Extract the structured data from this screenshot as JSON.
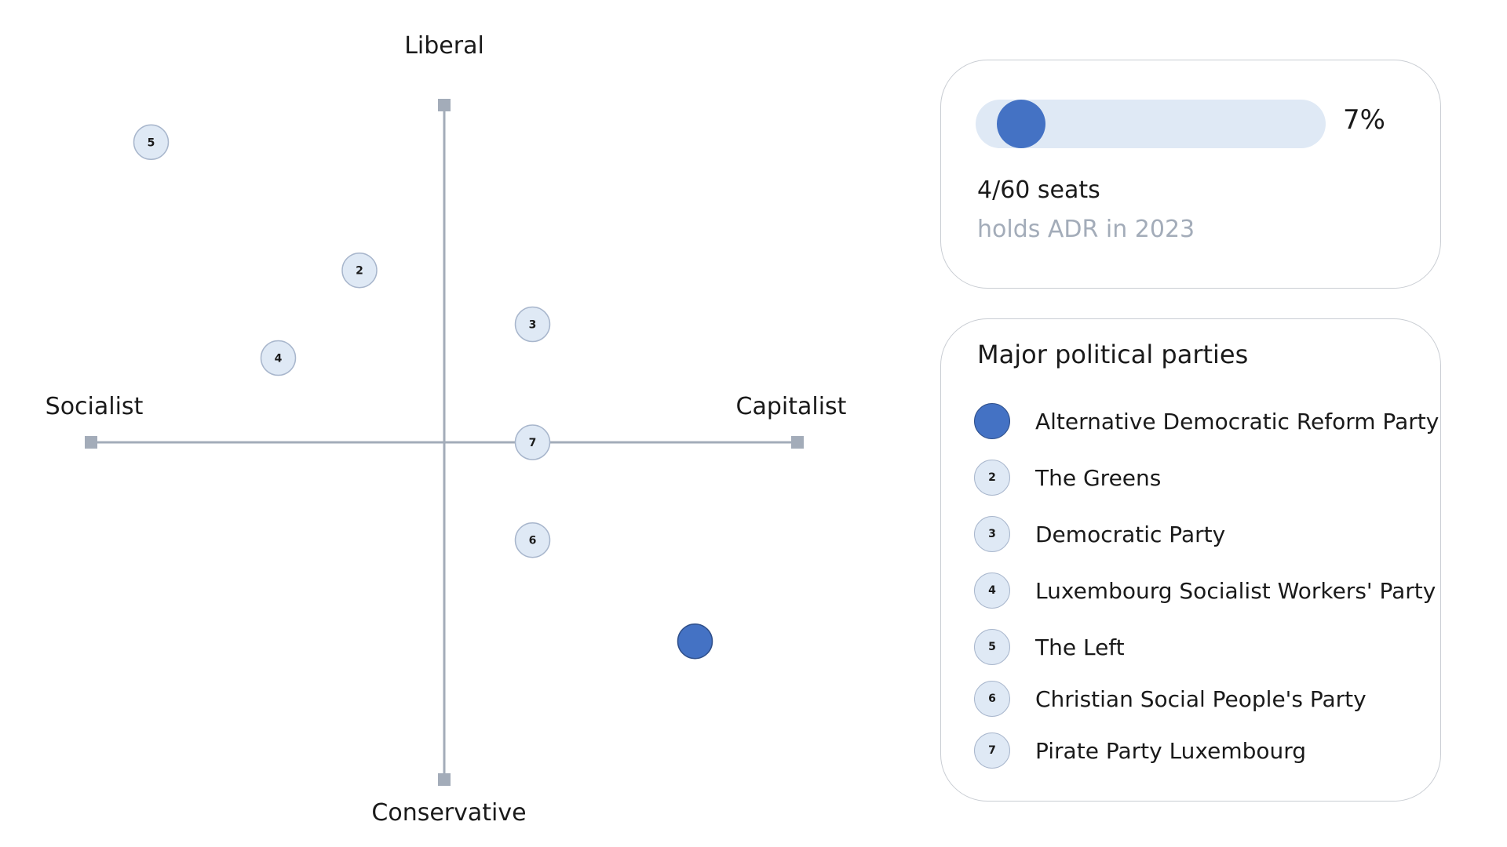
{
  "colors": {
    "highlight": "#4472c4",
    "marker_fill": "#dfe9f5",
    "marker_stroke": "#a8b6cc",
    "axis": "#a3acb9",
    "muted_text": "#a3acb9"
  },
  "seat_card": {
    "share_percent": 7,
    "share_label": "7%",
    "seats_label": "4/60 seats",
    "holds_label": "holds ADR in 2023"
  },
  "legend": {
    "title": "Major political parties",
    "items": [
      {
        "marker": "",
        "name": "Alternative Democratic Reform Party",
        "highlight": true
      },
      {
        "marker": "2",
        "name": "The Greens",
        "highlight": false
      },
      {
        "marker": "3",
        "name": "Democratic Party",
        "highlight": false
      },
      {
        "marker": "4",
        "name": "Luxembourg Socialist Workers' Party",
        "highlight": false
      },
      {
        "marker": "5",
        "name": "The Left",
        "highlight": false
      },
      {
        "marker": "6",
        "name": "Christian Social People's Party",
        "highlight": false
      },
      {
        "marker": "7",
        "name": "Pirate Party Luxembourg",
        "highlight": false
      }
    ]
  },
  "chart_data": {
    "type": "scatter",
    "title": "",
    "axes": {
      "left": "Socialist",
      "right": "Capitalist",
      "top": "Liberal",
      "bottom": "Conservative"
    },
    "xlim": [
      -1,
      1
    ],
    "ylim": [
      -1,
      1
    ],
    "grid": false,
    "points": [
      {
        "label": "",
        "party": "Alternative Democratic Reform Party",
        "x": 0.71,
        "y": -0.59,
        "highlight": true
      },
      {
        "label": "2",
        "party": "The Greens",
        "x": -0.24,
        "y": 0.51,
        "highlight": false
      },
      {
        "label": "3",
        "party": "Democratic Party",
        "x": 0.25,
        "y": 0.35,
        "highlight": false
      },
      {
        "label": "4",
        "party": "Luxembourg Socialist Workers' Party",
        "x": -0.47,
        "y": 0.25,
        "highlight": false
      },
      {
        "label": "5",
        "party": "The Left",
        "x": -0.83,
        "y": 0.89,
        "highlight": false
      },
      {
        "label": "6",
        "party": "Christian Social People's Party",
        "x": 0.25,
        "y": -0.29,
        "highlight": false
      },
      {
        "label": "7",
        "party": "Pirate Party Luxembourg",
        "x": 0.25,
        "y": 0.0,
        "highlight": false
      }
    ]
  }
}
